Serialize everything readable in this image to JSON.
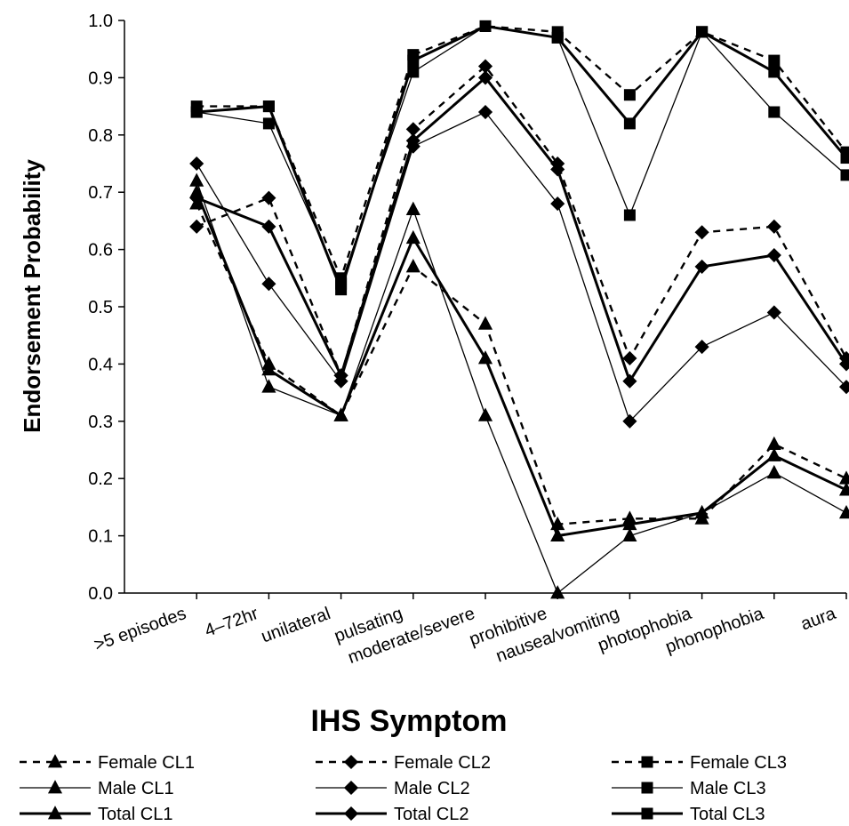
{
  "chart_data": {
    "type": "line",
    "title": "",
    "xlabel": "IHS Symptom",
    "ylabel": "Endorsement Probability",
    "ylim": [
      0,
      1
    ],
    "yticks": [
      "0.0",
      "0.1",
      "0.2",
      "0.3",
      "0.4",
      "0.5",
      "0.6",
      "0.7",
      "0.8",
      "0.9",
      "1.0"
    ],
    "categories": [
      ">5 episodes",
      "4–72hr",
      "unilateral",
      "pulsating",
      "moderate/severe",
      "prohibitive",
      "nausea/vomiting",
      "photophobia",
      "phonophobia",
      "aura"
    ],
    "grid": false,
    "legend_position": "bottom",
    "series": [
      {
        "name": "Female CL1",
        "marker": "triangle",
        "style": "dashed",
        "values": [
          0.68,
          0.4,
          0.31,
          0.57,
          0.47,
          0.12,
          0.13,
          0.13,
          0.26,
          0.2
        ]
      },
      {
        "name": "Female CL2",
        "marker": "diamond",
        "style": "dashed",
        "values": [
          0.64,
          0.69,
          0.38,
          0.81,
          0.92,
          0.75,
          0.41,
          0.63,
          0.64,
          0.41
        ]
      },
      {
        "name": "Female CL3",
        "marker": "square",
        "style": "dashed",
        "values": [
          0.85,
          0.85,
          0.55,
          0.94,
          0.99,
          0.98,
          0.87,
          0.98,
          0.93,
          0.77
        ]
      },
      {
        "name": "Male CL1",
        "marker": "triangle",
        "style": "thin",
        "values": [
          0.72,
          0.36,
          0.31,
          0.67,
          0.31,
          0.0,
          0.1,
          0.14,
          0.21,
          0.14
        ]
      },
      {
        "name": "Male CL2",
        "marker": "diamond",
        "style": "thin",
        "values": [
          0.75,
          0.54,
          0.37,
          0.78,
          0.84,
          0.68,
          0.3,
          0.43,
          0.49,
          0.36
        ]
      },
      {
        "name": "Male CL3",
        "marker": "square",
        "style": "thin",
        "values": [
          0.84,
          0.82,
          0.54,
          0.91,
          0.99,
          0.97,
          0.66,
          0.98,
          0.84,
          0.73
        ]
      },
      {
        "name": "Total CL1",
        "marker": "triangle",
        "style": "thick",
        "values": [
          0.7,
          0.39,
          0.31,
          0.62,
          0.41,
          0.1,
          0.12,
          0.14,
          0.24,
          0.18
        ]
      },
      {
        "name": "Total CL2",
        "marker": "diamond",
        "style": "thick",
        "values": [
          0.69,
          0.64,
          0.38,
          0.79,
          0.9,
          0.74,
          0.37,
          0.57,
          0.59,
          0.4
        ]
      },
      {
        "name": "Total CL3",
        "marker": "square",
        "style": "thick",
        "values": [
          0.84,
          0.85,
          0.53,
          0.93,
          0.99,
          0.97,
          0.82,
          0.98,
          0.91,
          0.76
        ]
      }
    ]
  }
}
